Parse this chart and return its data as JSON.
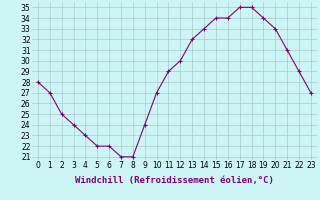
{
  "x": [
    0,
    1,
    2,
    3,
    4,
    5,
    6,
    7,
    8,
    9,
    10,
    11,
    12,
    13,
    14,
    15,
    16,
    17,
    18,
    19,
    20,
    21,
    22,
    23
  ],
  "y": [
    28,
    27,
    25,
    24,
    23,
    22,
    22,
    21,
    21,
    24,
    27,
    29,
    30,
    32,
    33,
    34,
    34,
    35,
    35,
    34,
    33,
    31,
    29,
    27
  ],
  "line_color": "#800080",
  "marker": "+",
  "marker_size": 3,
  "linewidth": 0.8,
  "xlabel": "Windchill (Refroidissement éolien,°C)",
  "xlabel_fontsize": 6.5,
  "ylabel_ticks": [
    21,
    22,
    23,
    24,
    25,
    26,
    27,
    28,
    29,
    30,
    31,
    32,
    33,
    34,
    35
  ],
  "ylim": [
    20.7,
    35.5
  ],
  "xlim": [
    -0.5,
    23.5
  ],
  "background_color": "#cef5f5",
  "grid_color": "#aacccc",
  "tick_fontsize": 5.5
}
